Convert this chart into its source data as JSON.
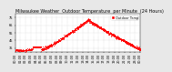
{
  "title": "Milwaukee Weather  Outdoor Temperature  per Minute  (24 Hours)",
  "bg_color": "#e8e8e8",
  "plot_bg_color": "#ffffff",
  "dot_color": "#ff0000",
  "dot_size": 0.3,
  "ylim": [
    30,
    80
  ],
  "xlim": [
    0,
    1440
  ],
  "yticks": [
    35,
    45,
    55,
    65,
    75
  ],
  "ytick_labels": [
    "35",
    "45",
    "55",
    "65",
    "75"
  ],
  "legend_label": "Outdoor Temp",
  "legend_color": "#ff0000",
  "grid_color": "#bbbbbb",
  "title_fontsize": 3.5,
  "tick_fontsize": 2.5,
  "legend_fontsize": 2.5,
  "night_low": 33,
  "day_high": 72,
  "peak_minute": 840,
  "noise_std": 1.0
}
